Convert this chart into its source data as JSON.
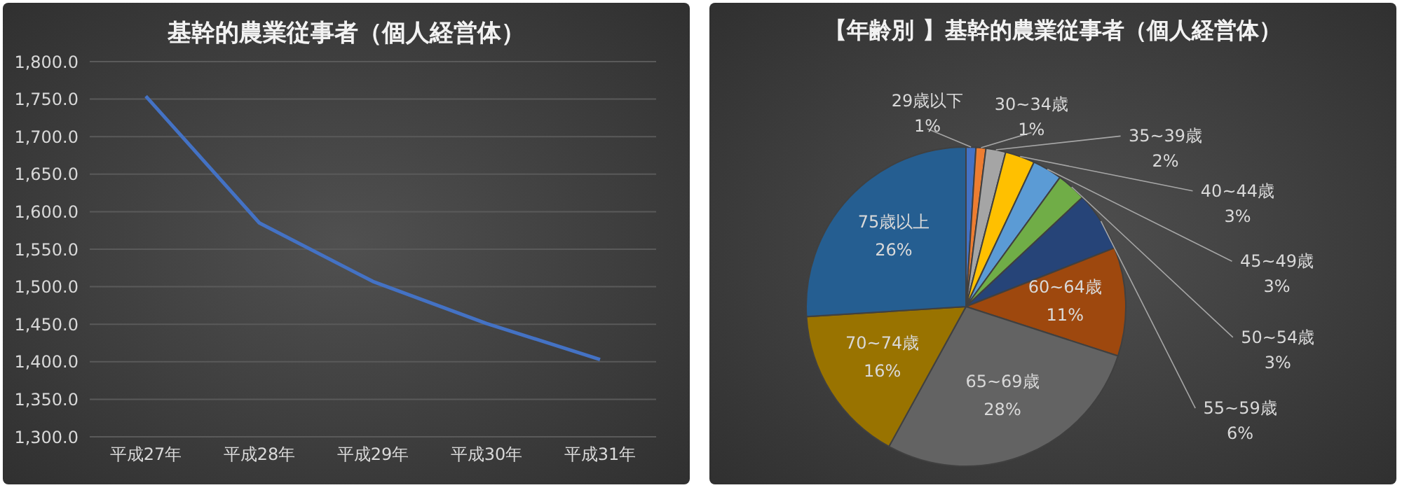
{
  "chart_data": [
    {
      "type": "line",
      "title": "基幹的農業従事者（個人経営体）",
      "categories": [
        "平成27年",
        "平成28年",
        "平成29年",
        "平成30年",
        "平成31年"
      ],
      "series": [
        {
          "color": "#4472c4",
          "values": [
            1754,
            1585,
            1507,
            1451,
            1403
          ]
        }
      ],
      "ylim": [
        1300,
        1800
      ],
      "yticks": [
        {
          "value": 1300,
          "label": "1,300.0"
        },
        {
          "value": 1350,
          "label": "1,350.0"
        },
        {
          "value": 1400,
          "label": "1,400.0"
        },
        {
          "value": 1450,
          "label": "1,450.0"
        },
        {
          "value": 1500,
          "label": "1,500.0"
        },
        {
          "value": 1550,
          "label": "1,550.0"
        },
        {
          "value": 1600,
          "label": "1,600.0"
        },
        {
          "value": 1650,
          "label": "1,650.0"
        },
        {
          "value": 1700,
          "label": "1,700.0"
        },
        {
          "value": 1750,
          "label": "1,750.0"
        },
        {
          "value": 1800,
          "label": "1,800.0"
        }
      ],
      "grid": "y",
      "legend": false,
      "marker": "none",
      "line_style": "solid"
    },
    {
      "type": "pie",
      "title": "【年齢別 】基幹的農業従事者（個人経営体）",
      "categories": [
        "29歳以下",
        "30~34歳",
        "35~39歳",
        "40~44歳",
        "45~49歳",
        "50~54歳",
        "55~59歳",
        "60~64歳",
        "65~69歳",
        "70~74歳",
        "75歳以上"
      ],
      "values": [
        1,
        1,
        2,
        3,
        3,
        3,
        6,
        11,
        28,
        16,
        26
      ],
      "value_labels": [
        "1%",
        "1%",
        "2%",
        "3%",
        "3%",
        "3%",
        "6%",
        "11%",
        "28%",
        "16%",
        "26%"
      ],
      "colors": [
        "#4472c4",
        "#ed7d31",
        "#a5a5a5",
        "#ffc000",
        "#5b9bd5",
        "#70ad47",
        "#264478",
        "#9e480e",
        "#636363",
        "#997300",
        "#255e91"
      ],
      "legend": false
    }
  ]
}
